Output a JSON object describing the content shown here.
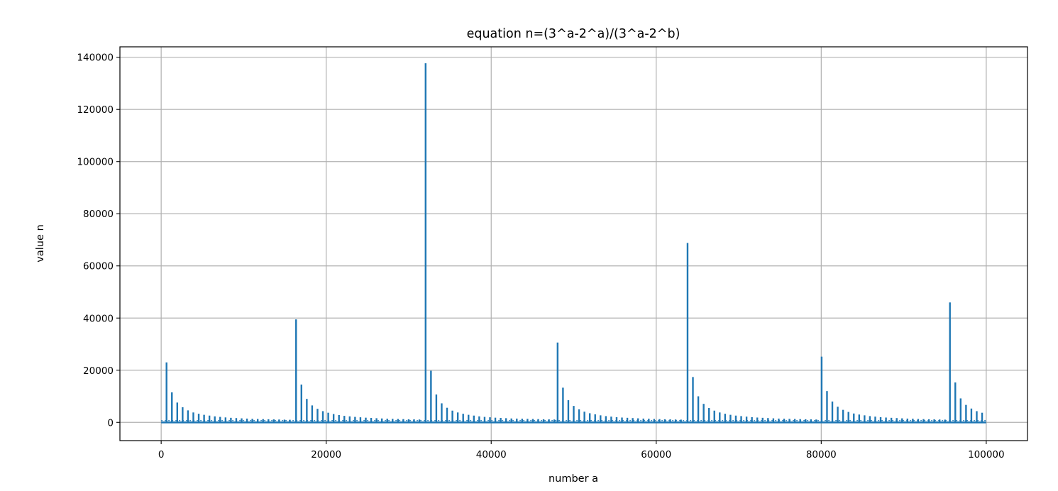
{
  "chart_data": {
    "type": "line",
    "title": "equation n=(3^a-2^a)/(3^a-2^b)",
    "xlabel": "number a",
    "ylabel": "value n",
    "xlim": [
      -5000,
      105000
    ],
    "ylim": [
      -7000,
      144000
    ],
    "xticks": [
      0,
      20000,
      40000,
      60000,
      80000,
      100000
    ],
    "yticks": [
      0,
      20000,
      40000,
      60000,
      80000,
      100000,
      120000,
      140000
    ],
    "xtick_labels": [
      "0",
      "20000",
      "40000",
      "60000",
      "80000",
      "100000"
    ],
    "ytick_labels": [
      "0",
      "20000",
      "40000",
      "60000",
      "80000",
      "100000",
      "120000",
      "140000"
    ],
    "grid": true,
    "baseline": 0,
    "series": [
      {
        "color": "#1f77b4",
        "spikes": [
          [
            650,
            23000
          ],
          [
            1300,
            11500
          ],
          [
            1950,
            7600
          ],
          [
            2600,
            5800
          ],
          [
            3250,
            4600
          ],
          [
            3900,
            3800
          ],
          [
            4550,
            3300
          ],
          [
            5200,
            2900
          ],
          [
            5850,
            2600
          ],
          [
            6500,
            2300
          ],
          [
            7150,
            2100
          ],
          [
            7800,
            1900
          ],
          [
            8450,
            1750
          ],
          [
            9100,
            1650
          ],
          [
            9750,
            1550
          ],
          [
            10400,
            1450
          ],
          [
            11050,
            1350
          ],
          [
            11700,
            1300
          ],
          [
            12350,
            1250
          ],
          [
            13000,
            1200
          ],
          [
            13650,
            1150
          ],
          [
            14300,
            1100
          ],
          [
            14950,
            1050
          ],
          [
            15600,
            1000
          ],
          [
            16350,
            39500
          ],
          [
            17000,
            14500
          ],
          [
            17650,
            9000
          ],
          [
            18300,
            6500
          ],
          [
            18950,
            5200
          ],
          [
            19600,
            4300
          ],
          [
            20250,
            3700
          ],
          [
            20900,
            3200
          ],
          [
            21550,
            2800
          ],
          [
            22200,
            2500
          ],
          [
            22850,
            2300
          ],
          [
            23500,
            2100
          ],
          [
            24150,
            1950
          ],
          [
            24800,
            1800
          ],
          [
            25450,
            1700
          ],
          [
            26100,
            1600
          ],
          [
            26750,
            1500
          ],
          [
            27400,
            1400
          ],
          [
            28050,
            1350
          ],
          [
            28700,
            1300
          ],
          [
            29350,
            1250
          ],
          [
            30000,
            1200
          ],
          [
            30650,
            1150
          ],
          [
            31300,
            1100
          ],
          [
            32050,
            137700
          ],
          [
            32700,
            19800
          ],
          [
            33350,
            10700
          ],
          [
            34000,
            7300
          ],
          [
            34650,
            5600
          ],
          [
            35300,
            4500
          ],
          [
            35950,
            3800
          ],
          [
            36600,
            3300
          ],
          [
            37250,
            2900
          ],
          [
            37900,
            2600
          ],
          [
            38550,
            2300
          ],
          [
            39200,
            2100
          ],
          [
            39850,
            1950
          ],
          [
            40500,
            1800
          ],
          [
            41150,
            1700
          ],
          [
            41800,
            1600
          ],
          [
            42450,
            1500
          ],
          [
            43100,
            1450
          ],
          [
            43750,
            1400
          ],
          [
            44400,
            1350
          ],
          [
            45050,
            1300
          ],
          [
            45700,
            1250
          ],
          [
            46350,
            1200
          ],
          [
            47000,
            1150
          ],
          [
            47650,
            1100
          ],
          [
            48050,
            30600
          ],
          [
            48700,
            13300
          ],
          [
            49350,
            8500
          ],
          [
            50000,
            6300
          ],
          [
            50650,
            5000
          ],
          [
            51300,
            4100
          ],
          [
            51950,
            3500
          ],
          [
            52600,
            3100
          ],
          [
            53250,
            2700
          ],
          [
            53900,
            2400
          ],
          [
            54550,
            2200
          ],
          [
            55200,
            2000
          ],
          [
            55850,
            1850
          ],
          [
            56500,
            1750
          ],
          [
            57150,
            1650
          ],
          [
            57800,
            1550
          ],
          [
            58450,
            1450
          ],
          [
            59100,
            1400
          ],
          [
            59750,
            1300
          ],
          [
            60400,
            1250
          ],
          [
            61050,
            1200
          ],
          [
            61700,
            1150
          ],
          [
            62350,
            1100
          ],
          [
            63000,
            1050
          ],
          [
            63800,
            68800
          ],
          [
            64450,
            17400
          ],
          [
            65100,
            10000
          ],
          [
            65750,
            7100
          ],
          [
            66400,
            5500
          ],
          [
            67050,
            4500
          ],
          [
            67700,
            3800
          ],
          [
            68350,
            3300
          ],
          [
            69000,
            2900
          ],
          [
            69650,
            2600
          ],
          [
            70300,
            2400
          ],
          [
            70950,
            2200
          ],
          [
            71600,
            2000
          ],
          [
            72250,
            1850
          ],
          [
            72900,
            1750
          ],
          [
            73550,
            1650
          ],
          [
            74200,
            1550
          ],
          [
            74850,
            1450
          ],
          [
            75500,
            1400
          ],
          [
            76150,
            1350
          ],
          [
            76800,
            1300
          ],
          [
            77450,
            1250
          ],
          [
            78100,
            1200
          ],
          [
            78750,
            1150
          ],
          [
            79400,
            1100
          ],
          [
            80050,
            25200
          ],
          [
            80700,
            12000
          ],
          [
            81350,
            8000
          ],
          [
            82000,
            6000
          ],
          [
            82650,
            4800
          ],
          [
            83300,
            4000
          ],
          [
            83950,
            3400
          ],
          [
            84600,
            3000
          ],
          [
            85250,
            2700
          ],
          [
            85900,
            2400
          ],
          [
            86550,
            2200
          ],
          [
            87200,
            2000
          ],
          [
            87850,
            1850
          ],
          [
            88500,
            1750
          ],
          [
            89150,
            1650
          ],
          [
            89800,
            1550
          ],
          [
            90450,
            1450
          ],
          [
            91100,
            1400
          ],
          [
            91750,
            1300
          ],
          [
            92400,
            1250
          ],
          [
            93050,
            1200
          ],
          [
            93700,
            1150
          ],
          [
            94350,
            1100
          ],
          [
            95000,
            1050
          ],
          [
            95600,
            46000
          ],
          [
            96250,
            15300
          ],
          [
            96900,
            9200
          ],
          [
            97550,
            6700
          ],
          [
            98200,
            5300
          ],
          [
            98850,
            4300
          ],
          [
            99500,
            3700
          ]
        ]
      }
    ]
  }
}
